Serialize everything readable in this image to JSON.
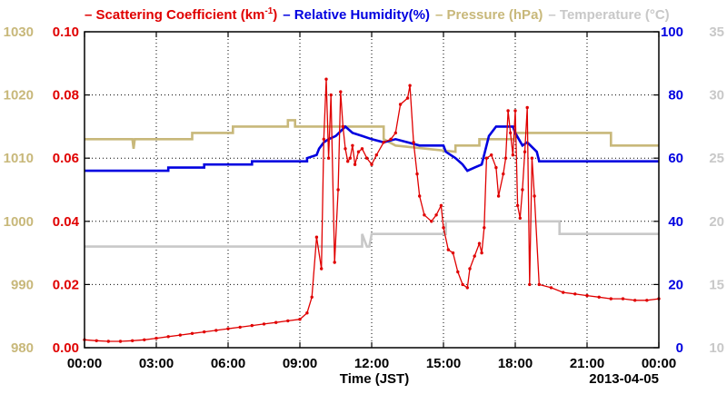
{
  "chart_data": {
    "type": "line",
    "legend": {
      "placement": "top",
      "items": [
        {
          "marker": "–",
          "text": "Scattering Coefficient (km",
          "sup": "-1",
          "text_after": ")",
          "color": "#e00000"
        },
        {
          "marker": "–",
          "text": "Relative Humidity(%)",
          "color": "#0000e0"
        },
        {
          "marker": "–",
          "text": "Pressure (hPa)",
          "color": "#c8b87a"
        },
        {
          "marker": "–",
          "text": "Temperature (°C)",
          "color": "#c8c8c8"
        }
      ]
    },
    "xlabel": "Time (JST)",
    "date_label": "2013-04-05",
    "x_range": [
      "00:00",
      "24:00"
    ],
    "x_ticks": [
      "00:00",
      "03:00",
      "06:00",
      "09:00",
      "12:00",
      "15:00",
      "18:00",
      "21:00",
      "00:00"
    ],
    "grid": true,
    "axes": {
      "scattering": {
        "side": "left-inner",
        "ylim": [
          0,
          0.1
        ],
        "ticks": [
          "0.00",
          "0.02",
          "0.04",
          "0.06",
          "0.08",
          "0.10"
        ],
        "color": "#e00000"
      },
      "pressure": {
        "side": "left-outer",
        "ylim": [
          980,
          1030
        ],
        "ticks": [
          "980",
          "990",
          "1000",
          "1010",
          "1020",
          "1030"
        ],
        "color": "#c8b87a"
      },
      "humidity": {
        "side": "right-inner",
        "ylim": [
          0,
          100
        ],
        "ticks": [
          "0",
          "20",
          "40",
          "60",
          "80",
          "100"
        ],
        "color": "#0000e0"
      },
      "temperature": {
        "side": "right-outer",
        "ylim": [
          10,
          35
        ],
        "ticks": [
          "10",
          "15",
          "20",
          "25",
          "30",
          "35"
        ],
        "color": "#c8c8c8"
      }
    },
    "series": [
      {
        "name": "Scattering Coefficient (km-1)",
        "axis": "scattering",
        "color": "#e00000",
        "markers": true,
        "x": [
          0,
          0.5,
          1,
          1.5,
          2,
          2.5,
          3,
          3.5,
          4,
          4.5,
          5,
          5.5,
          6,
          6.5,
          7,
          7.5,
          8,
          8.5,
          9,
          9.3,
          9.5,
          9.7,
          9.9,
          10.0,
          10.1,
          10.2,
          10.3,
          10.45,
          10.6,
          10.7,
          10.8,
          10.9,
          11.0,
          11.1,
          11.2,
          11.3,
          11.45,
          11.6,
          11.8,
          12.0,
          12.2,
          12.5,
          12.8,
          13.0,
          13.2,
          13.5,
          13.6,
          13.75,
          13.9,
          14.0,
          14.2,
          14.5,
          14.7,
          14.9,
          15.0,
          15.2,
          15.4,
          15.6,
          15.8,
          16.0,
          16.1,
          16.3,
          16.5,
          16.6,
          16.7,
          16.8,
          17.0,
          17.2,
          17.3,
          17.5,
          17.6,
          17.7,
          17.8,
          17.9,
          18.0,
          18.1,
          18.2,
          18.3,
          18.4,
          18.5,
          18.6,
          18.7,
          18.8,
          19.0,
          19.5,
          20,
          20.5,
          21,
          21.5,
          22,
          22.5,
          23,
          23.5,
          24
        ],
        "y": [
          0.0025,
          0.0022,
          0.002,
          0.002,
          0.0022,
          0.0025,
          0.003,
          0.0035,
          0.004,
          0.0045,
          0.005,
          0.0055,
          0.006,
          0.0065,
          0.007,
          0.0075,
          0.008,
          0.0085,
          0.009,
          0.011,
          0.016,
          0.035,
          0.025,
          0.066,
          0.085,
          0.06,
          0.08,
          0.027,
          0.05,
          0.081,
          0.07,
          0.063,
          0.059,
          0.06,
          0.064,
          0.058,
          0.062,
          0.063,
          0.06,
          0.058,
          0.061,
          0.065,
          0.066,
          0.068,
          0.077,
          0.079,
          0.083,
          0.065,
          0.055,
          0.048,
          0.042,
          0.04,
          0.042,
          0.045,
          0.038,
          0.031,
          0.03,
          0.024,
          0.02,
          0.019,
          0.025,
          0.029,
          0.033,
          0.03,
          0.038,
          0.06,
          0.061,
          0.057,
          0.048,
          0.055,
          0.06,
          0.075,
          0.068,
          0.061,
          0.075,
          0.045,
          0.041,
          0.05,
          0.062,
          0.076,
          0.02,
          0.06,
          0.048,
          0.02,
          0.019,
          0.0175,
          0.017,
          0.0165,
          0.016,
          0.0155,
          0.0155,
          0.015,
          0.015,
          0.0155
        ]
      },
      {
        "name": "Relative Humidity(%)",
        "axis": "humidity",
        "color": "#0000e0",
        "markers": false,
        "x": [
          0,
          3.5,
          3.5,
          5.0,
          5.0,
          7.0,
          7.0,
          9.3,
          9.3,
          9.7,
          9.8,
          10.0,
          10.2,
          10.5,
          10.9,
          11.2,
          11.6,
          12.0,
          12.5,
          13.0,
          13.5,
          14.0,
          14.5,
          15.0,
          15.1,
          15.5,
          15.8,
          16.0,
          16.3,
          16.6,
          16.9,
          17.2,
          17.5,
          17.9,
          18.0,
          18.3,
          18.5,
          18.9,
          19.0,
          24
        ],
        "y": [
          56,
          56,
          57,
          57,
          58,
          58,
          59,
          59,
          60,
          61,
          63,
          65,
          66,
          67,
          70,
          68,
          67,
          66,
          65,
          66,
          65,
          64,
          64,
          64,
          62,
          60,
          58,
          56,
          57,
          58,
          67,
          70,
          70,
          70,
          68,
          64,
          65,
          62,
          59,
          59
        ]
      },
      {
        "name": "Pressure (hPa)",
        "axis": "pressure",
        "color": "#c8b87a",
        "markers": false,
        "x": [
          0,
          2.0,
          2.05,
          2.1,
          4.5,
          4.5,
          6.2,
          6.2,
          8.5,
          8.5,
          8.8,
          8.8,
          12.5,
          12.5,
          13.0,
          15.5,
          15.5,
          16.5,
          16.5,
          18.0,
          18.0,
          22.0,
          22.0,
          24
        ],
        "y": [
          1013,
          1013,
          1011.5,
          1013,
          1013,
          1014,
          1014,
          1015,
          1015,
          1016,
          1016,
          1015,
          1015,
          1013,
          1012,
          1011,
          1012,
          1012,
          1013,
          1013,
          1014,
          1014,
          1012,
          1012
        ]
      },
      {
        "name": "Temperature (°C)",
        "axis": "temperature",
        "color": "#c8c8c8",
        "markers": false,
        "x": [
          0,
          11.6,
          11.6,
          11.8,
          11.9,
          12.0,
          12.0,
          15.1,
          15.1,
          19.85,
          19.85,
          24
        ],
        "y": [
          18,
          18,
          19,
          18,
          18,
          19,
          19,
          19,
          20,
          20,
          19,
          19
        ]
      }
    ]
  }
}
